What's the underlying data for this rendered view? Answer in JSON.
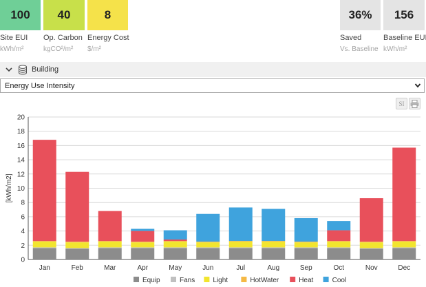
{
  "metrics": [
    {
      "value": "100",
      "label": "Site EUI",
      "unit": "kWh/m²",
      "color": "#6fcf97"
    },
    {
      "value": "40",
      "label": "Op. Carbon",
      "unit": "kgCO²/m²",
      "color": "#c8e04a"
    },
    {
      "value": "8",
      "label": "Energy Cost",
      "unit": "$/m²",
      "color": "#f5e24a"
    },
    {
      "value": "36%",
      "label": "Saved",
      "unit": "Vs. Baseline",
      "color": "#e4e4e4"
    },
    {
      "value": "156",
      "label": "Baseline EUI",
      "unit": "kWh/m²",
      "color": "#e4e4e4"
    }
  ],
  "section": {
    "title": "Building",
    "chevron_icon": "chevron-down-icon",
    "database_icon": "database-icon"
  },
  "dropdown": {
    "selected": "Energy Use Intensity"
  },
  "toolbar": {
    "si_label": "SI",
    "print_icon": "printer-icon"
  },
  "chart_data": {
    "type": "bar",
    "stacked": true,
    "categories": [
      "Jan",
      "Feb",
      "Mar",
      "Apr",
      "May",
      "Jun",
      "Jul",
      "Aug",
      "Sep",
      "Oct",
      "Nov",
      "Dec"
    ],
    "ylabel": "[kWh/m2]",
    "ylim": [
      0,
      20
    ],
    "yticks": [
      "0",
      "2",
      "4",
      "6",
      "8",
      "10",
      "12",
      "14",
      "16",
      "18",
      "20"
    ],
    "grid": true,
    "legend_position": "bottom",
    "series": [
      {
        "name": "Equip",
        "color": "#8c8c8c",
        "values": [
          1.6,
          1.5,
          1.6,
          1.6,
          1.6,
          1.6,
          1.6,
          1.6,
          1.6,
          1.6,
          1.5,
          1.6
        ]
      },
      {
        "name": "Fans",
        "color": "#c0c0c0",
        "values": [
          0.1,
          0.1,
          0.1,
          0.1,
          0.1,
          0.1,
          0.1,
          0.1,
          0.1,
          0.1,
          0.1,
          0.1
        ]
      },
      {
        "name": "Light",
        "color": "#f2e52e",
        "values": [
          0.8,
          0.8,
          0.8,
          0.7,
          0.8,
          0.7,
          0.8,
          0.8,
          0.7,
          0.8,
          0.8,
          0.8
        ]
      },
      {
        "name": "HotWater",
        "color": "#f5b945",
        "values": [
          0.1,
          0.1,
          0.1,
          0.1,
          0.1,
          0.1,
          0.1,
          0.1,
          0.1,
          0.1,
          0.1,
          0.1
        ]
      },
      {
        "name": "Heat",
        "color": "#e8505b",
        "values": [
          14.2,
          9.8,
          4.2,
          1.5,
          0.2,
          0,
          0,
          0,
          0,
          1.5,
          6.1,
          13.1
        ]
      },
      {
        "name": "Cool",
        "color": "#3fa3dd",
        "values": [
          0,
          0,
          0,
          0.3,
          1.3,
          3.9,
          4.7,
          4.5,
          3.3,
          1.3,
          0,
          0
        ]
      }
    ]
  }
}
